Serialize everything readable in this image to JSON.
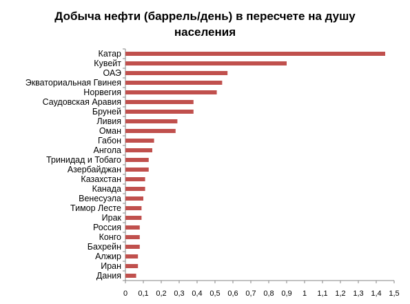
{
  "chart_data": {
    "type": "bar",
    "orientation": "horizontal",
    "title_lines": [
      "Добыча нефти (баррель/день) в пересчете на душу",
      "населения"
    ],
    "categories": [
      "Катар",
      "Кувейт",
      "ОАЭ",
      "Экваториальная Гвинея",
      "Норвегия",
      "Саудовская Аравия",
      "Бруней",
      "Ливия",
      "Оман",
      "Габон",
      "Ангола",
      "Тринидад и Тобаго",
      "Азербайджан",
      "Казахстан",
      "Канада",
      "Венесуэла",
      "Тимор Лесте",
      "Ирак",
      "Россия",
      "Конго",
      "Бахрейн",
      "Алжир",
      "Иран",
      "Дания"
    ],
    "values": [
      1.45,
      0.9,
      0.57,
      0.54,
      0.51,
      0.38,
      0.38,
      0.29,
      0.28,
      0.16,
      0.15,
      0.13,
      0.13,
      0.11,
      0.11,
      0.1,
      0.09,
      0.09,
      0.08,
      0.08,
      0.08,
      0.07,
      0.07,
      0.06
    ],
    "xlim": [
      0,
      1.5
    ],
    "x_ticks": [
      "0",
      "0,1",
      "0,2",
      "0,3",
      "0,4",
      "0,5",
      "0,6",
      "0,7",
      "0,8",
      "0,9",
      "1",
      "1,1",
      "1,2",
      "1,3",
      "1,4",
      "1,5"
    ],
    "grid": false,
    "legend": "none",
    "bar_color": "#c0504d"
  }
}
